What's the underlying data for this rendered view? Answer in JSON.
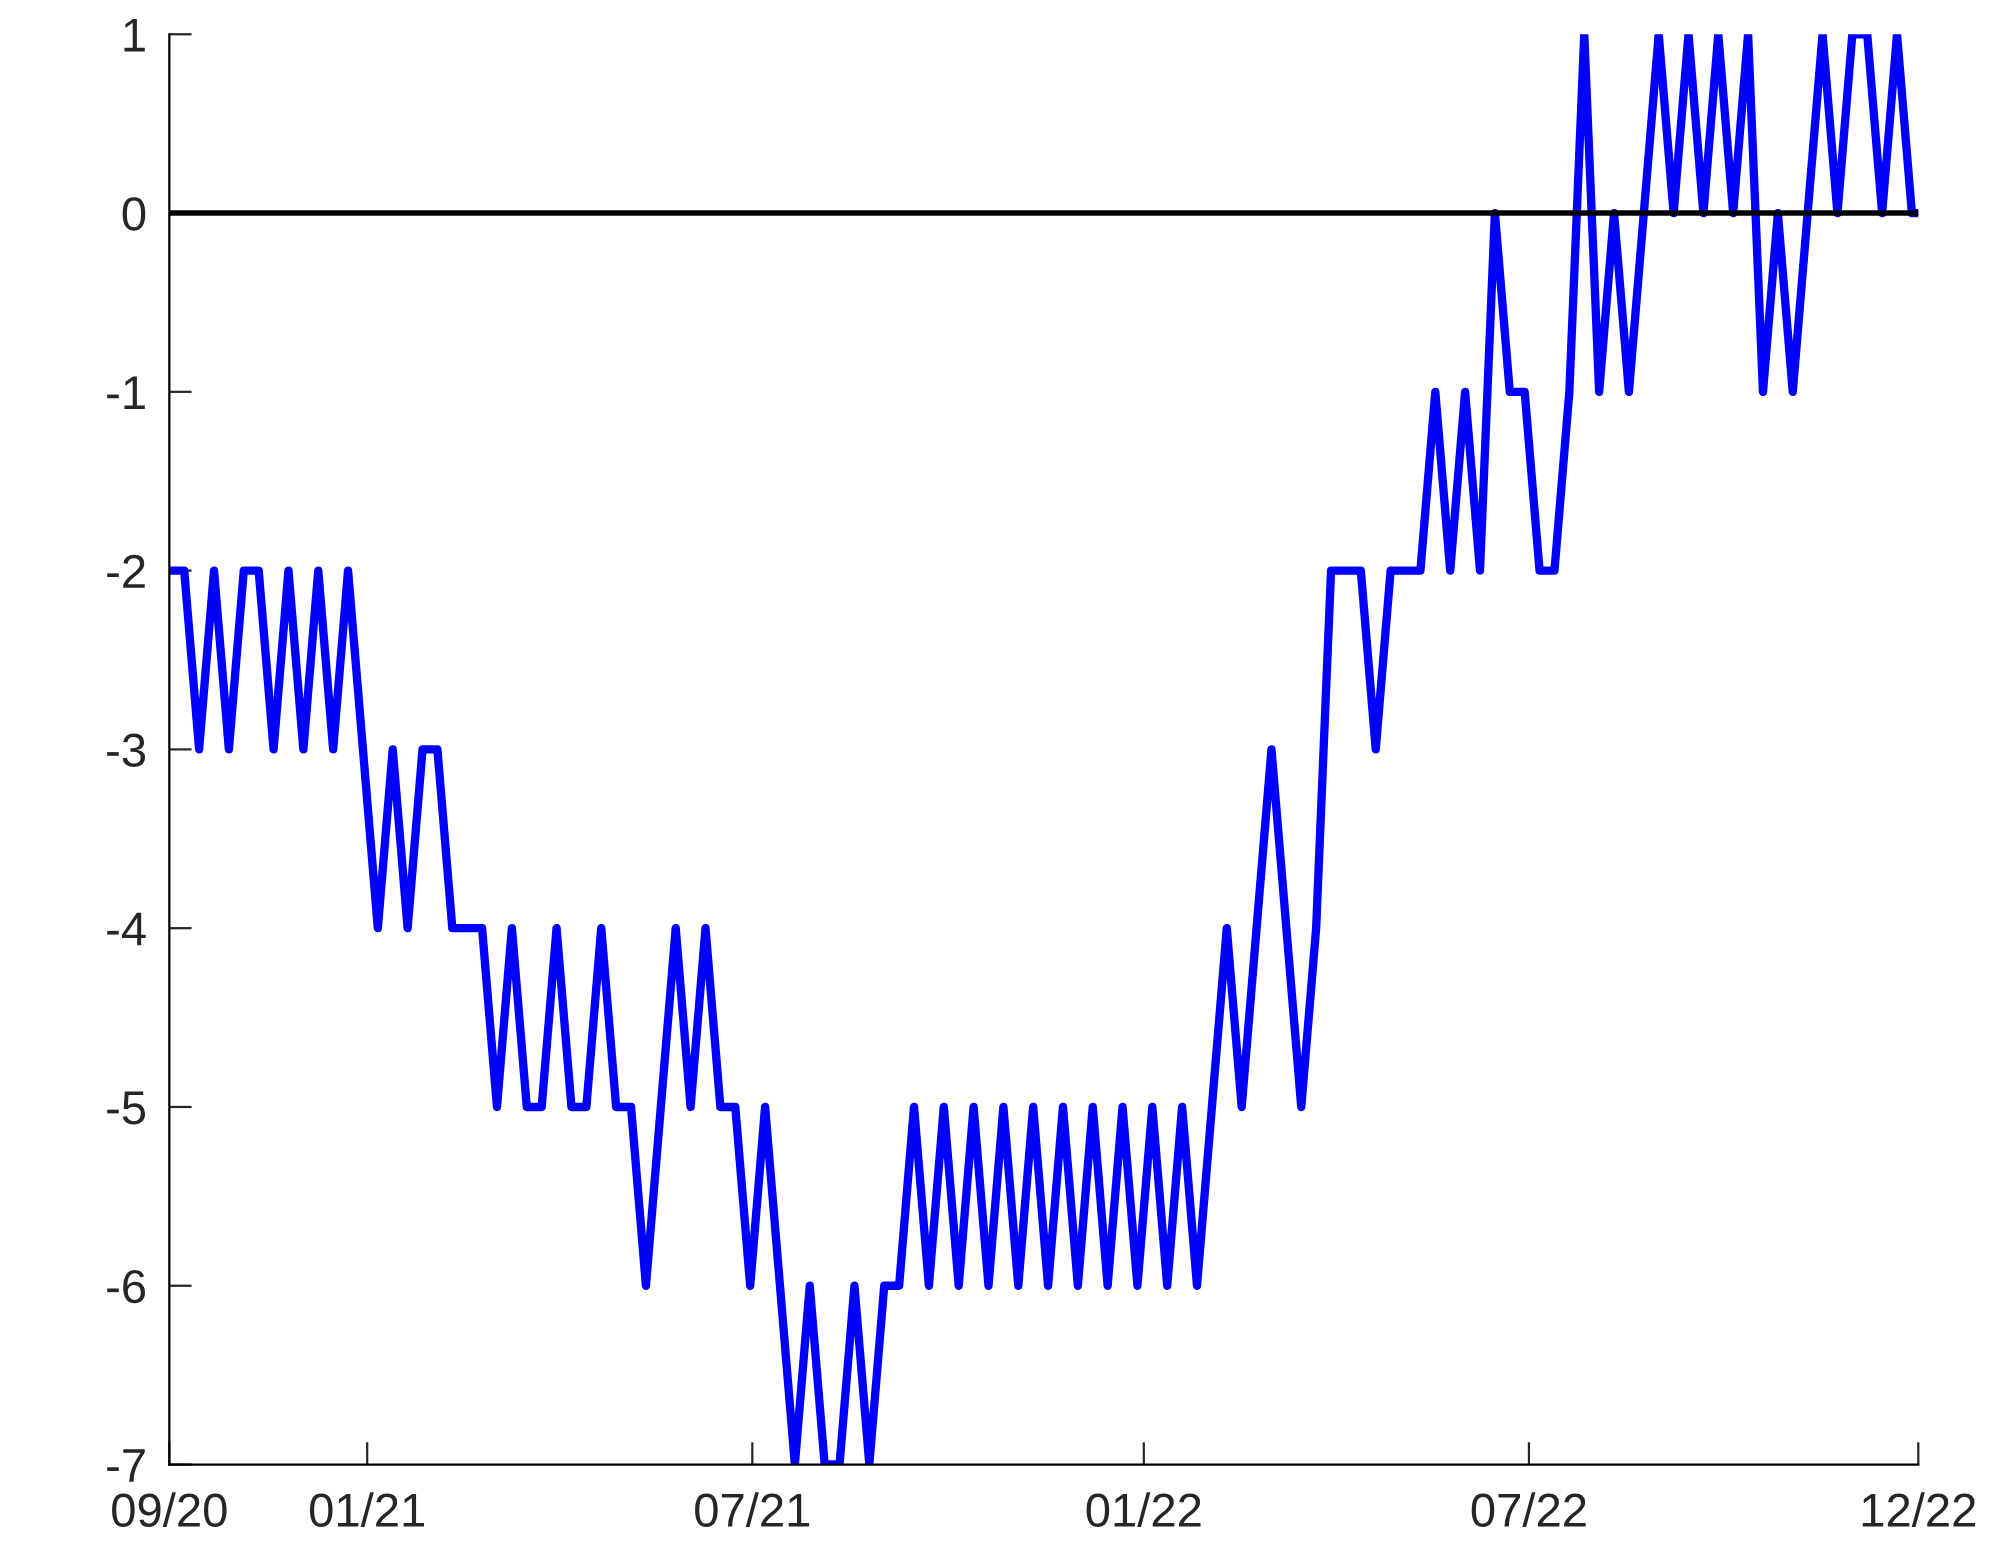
{
  "chart_data": {
    "type": "line",
    "x": [
      "2020-09-30",
      "2020-10-07",
      "2020-10-14",
      "2020-10-21",
      "2020-10-28",
      "2020-11-04",
      "2020-11-11",
      "2020-11-18",
      "2020-11-25",
      "2020-12-02",
      "2020-12-09",
      "2020-12-16",
      "2020-12-23",
      "2020-12-30",
      "2021-01-06",
      "2021-01-13",
      "2021-01-20",
      "2021-01-27",
      "2021-02-03",
      "2021-02-10",
      "2021-02-17",
      "2021-02-24",
      "2021-03-03",
      "2021-03-10",
      "2021-03-17",
      "2021-03-24",
      "2021-03-31",
      "2021-04-07",
      "2021-04-14",
      "2021-04-21",
      "2021-04-28",
      "2021-05-05",
      "2021-05-12",
      "2021-05-19",
      "2021-05-26",
      "2021-06-02",
      "2021-06-09",
      "2021-06-16",
      "2021-06-23",
      "2021-06-30",
      "2021-07-07",
      "2021-07-14",
      "2021-07-21",
      "2021-07-28",
      "2021-08-04",
      "2021-08-11",
      "2021-08-18",
      "2021-08-25",
      "2021-09-01",
      "2021-09-08",
      "2021-09-15",
      "2021-09-22",
      "2021-09-29",
      "2021-10-06",
      "2021-10-13",
      "2021-10-20",
      "2021-10-27",
      "2021-11-03",
      "2021-11-10",
      "2021-11-17",
      "2021-11-24",
      "2021-12-01",
      "2021-12-08",
      "2021-12-15",
      "2021-12-22",
      "2021-12-29",
      "2022-01-05",
      "2022-01-12",
      "2022-01-19",
      "2022-01-26",
      "2022-02-02",
      "2022-02-09",
      "2022-02-16",
      "2022-02-23",
      "2022-03-02",
      "2022-03-09",
      "2022-03-16",
      "2022-03-23",
      "2022-03-30",
      "2022-04-06",
      "2022-04-13",
      "2022-04-20",
      "2022-04-27",
      "2022-05-04",
      "2022-05-11",
      "2022-05-18",
      "2022-05-25",
      "2022-06-01",
      "2022-06-08",
      "2022-06-15",
      "2022-06-22",
      "2022-06-29",
      "2022-07-06",
      "2022-07-13",
      "2022-07-20",
      "2022-07-27",
      "2022-08-03",
      "2022-08-10",
      "2022-08-17",
      "2022-08-24",
      "2022-08-31",
      "2022-09-07",
      "2022-09-14",
      "2022-09-21",
      "2022-09-28",
      "2022-10-05",
      "2022-10-12",
      "2022-10-19",
      "2022-10-26",
      "2022-11-02",
      "2022-11-09",
      "2022-11-16",
      "2022-11-23",
      "2022-11-30",
      "2022-12-07",
      "2022-12-14",
      "2022-12-21",
      "2022-12-28",
      "2022-12-31"
    ],
    "series": [
      {
        "color": "#0000ff",
        "values": [
          -2,
          -2,
          -3,
          -2,
          -3,
          -2,
          -2,
          -3,
          -2,
          -3,
          -2,
          -3,
          -2,
          -3,
          -4,
          -3,
          -4,
          -3,
          -3,
          -4,
          -4,
          -4,
          -5,
          -4,
          -5,
          -5,
          -4,
          -5,
          -5,
          -4,
          -5,
          -5,
          -6,
          -5,
          -4,
          -5,
          -4,
          -5,
          -5,
          -6,
          -5,
          -6,
          -7,
          -6,
          -7,
          -7,
          -6,
          -7,
          -6,
          -6,
          -5,
          -6,
          -5,
          -6,
          -5,
          -6,
          -5,
          -6,
          -5,
          -6,
          -5,
          -6,
          -5,
          -6,
          -5,
          -6,
          -5,
          -6,
          -5,
          -6,
          -5,
          -4,
          -5,
          -4,
          -3,
          -4,
          -5,
          -4,
          -2,
          -2,
          -2,
          -3,
          -2,
          -2,
          -2,
          -1,
          -2,
          -1,
          -2,
          0,
          -1,
          -1,
          -2,
          -2,
          -1,
          1,
          -1,
          0,
          -1,
          0,
          1,
          0,
          1,
          0,
          1,
          0,
          1,
          -1,
          0,
          -1,
          0,
          1,
          0,
          1,
          1,
          0,
          1,
          0,
          0
        ]
      }
    ],
    "xlim": [
      "2020-09-30",
      "2022-12-31"
    ],
    "xticks": [
      {
        "value": "2020-09-30",
        "label": "09/20"
      },
      {
        "value": "2021-01-01",
        "label": "01/21"
      },
      {
        "value": "2021-07-01",
        "label": "07/21"
      },
      {
        "value": "2022-01-01",
        "label": "01/22"
      },
      {
        "value": "2022-07-01",
        "label": "07/22"
      },
      {
        "value": "2022-12-31",
        "label": "12/22"
      }
    ],
    "ylim": [
      -7,
      1
    ],
    "yticks": [
      -7,
      -6,
      -5,
      -4,
      -3,
      -2,
      -1,
      0,
      1
    ],
    "ref_lines": [
      {
        "axis": "y",
        "value": 0,
        "color": "#000000"
      }
    ],
    "grid": false,
    "legend": false
  }
}
